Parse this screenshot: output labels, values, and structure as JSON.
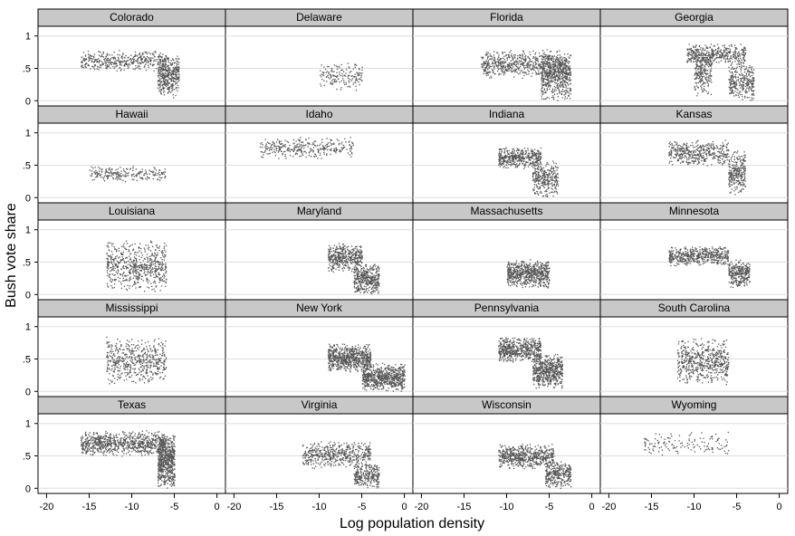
{
  "chart_data": {
    "type": "scatter",
    "layout": "small-multiples",
    "xlabel": "Log population density",
    "ylabel": "Bush vote share",
    "xlim": [
      -21,
      1
    ],
    "ylim": [
      -0.08,
      1.15
    ],
    "x_ticks": [
      -20,
      -15,
      -10,
      -5,
      0
    ],
    "x_tick_labels": [
      "-20",
      "-15",
      "-10",
      "-5",
      "0"
    ],
    "y_ticks": [
      0,
      0.5,
      1
    ],
    "y_tick_labels": [
      "0",
      ".5",
      "1"
    ],
    "grid": "horizontal",
    "point_color": "#555555",
    "panel_header_color": "#c8c8c8",
    "panels": [
      {
        "title": "Colorado",
        "clusters": [
          {
            "x": [
              -16,
              -6
            ],
            "y": [
              0.45,
              0.8
            ],
            "n": 420
          },
          {
            "x": [
              -7,
              -4.5
            ],
            "y": [
              0.05,
              0.75
            ],
            "n": 380
          }
        ]
      },
      {
        "title": "Delaware",
        "clusters": [
          {
            "x": [
              -10,
              -5
            ],
            "y": [
              0.15,
              0.6
            ],
            "n": 160
          }
        ]
      },
      {
        "title": "Florida",
        "clusters": [
          {
            "x": [
              -13,
              -3
            ],
            "y": [
              0.35,
              0.8
            ],
            "n": 650
          },
          {
            "x": [
              -6,
              -2.5
            ],
            "y": [
              0.0,
              0.75
            ],
            "n": 500
          }
        ]
      },
      {
        "title": "Georgia",
        "clusters": [
          {
            "x": [
              -11,
              -4
            ],
            "y": [
              0.55,
              0.9
            ],
            "n": 420
          },
          {
            "x": [
              -10,
              -8
            ],
            "y": [
              0.05,
              0.8
            ],
            "n": 220
          },
          {
            "x": [
              -6,
              -3
            ],
            "y": [
              0.0,
              0.6
            ],
            "n": 300
          }
        ]
      },
      {
        "title": "Hawaii",
        "clusters": [
          {
            "x": [
              -15,
              -6
            ],
            "y": [
              0.25,
              0.5
            ],
            "n": 220
          }
        ]
      },
      {
        "title": "Idaho",
        "clusters": [
          {
            "x": [
              -17,
              -6
            ],
            "y": [
              0.6,
              0.95
            ],
            "n": 320
          }
        ]
      },
      {
        "title": "Indiana",
        "clusters": [
          {
            "x": [
              -11,
              -6
            ],
            "y": [
              0.45,
              0.8
            ],
            "n": 420
          },
          {
            "x": [
              -7,
              -4
            ],
            "y": [
              0.0,
              0.6
            ],
            "n": 300
          }
        ]
      },
      {
        "title": "Kansas",
        "clusters": [
          {
            "x": [
              -13,
              -6
            ],
            "y": [
              0.5,
              0.9
            ],
            "n": 420
          },
          {
            "x": [
              -6,
              -4
            ],
            "y": [
              0.0,
              0.75
            ],
            "n": 260
          }
        ]
      },
      {
        "title": "Louisiana",
        "clusters": [
          {
            "x": [
              -13,
              -6
            ],
            "y": [
              0.05,
              0.85
            ],
            "n": 620
          }
        ]
      },
      {
        "title": "Maryland",
        "clusters": [
          {
            "x": [
              -9,
              -5
            ],
            "y": [
              0.35,
              0.8
            ],
            "n": 420
          },
          {
            "x": [
              -6,
              -3
            ],
            "y": [
              0.0,
              0.5
            ],
            "n": 380
          }
        ]
      },
      {
        "title": "Massachusetts",
        "clusters": [
          {
            "x": [
              -10,
              -5
            ],
            "y": [
              0.1,
              0.55
            ],
            "n": 650
          }
        ]
      },
      {
        "title": "Minnesota",
        "clusters": [
          {
            "x": [
              -13,
              -6
            ],
            "y": [
              0.45,
              0.75
            ],
            "n": 500
          },
          {
            "x": [
              -6,
              -3.5
            ],
            "y": [
              0.1,
              0.55
            ],
            "n": 280
          }
        ]
      },
      {
        "title": "Mississippi",
        "clusters": [
          {
            "x": [
              -13,
              -6
            ],
            "y": [
              0.1,
              0.85
            ],
            "n": 520
          }
        ]
      },
      {
        "title": "New York",
        "clusters": [
          {
            "x": [
              -9,
              -4
            ],
            "y": [
              0.3,
              0.75
            ],
            "n": 700
          },
          {
            "x": [
              -5,
              0
            ],
            "y": [
              0.0,
              0.45
            ],
            "n": 650
          }
        ]
      },
      {
        "title": "Pennsylvania",
        "clusters": [
          {
            "x": [
              -11,
              -6
            ],
            "y": [
              0.45,
              0.85
            ],
            "n": 550
          },
          {
            "x": [
              -7,
              -3.5
            ],
            "y": [
              0.05,
              0.6
            ],
            "n": 550
          }
        ]
      },
      {
        "title": "South Carolina",
        "clusters": [
          {
            "x": [
              -12,
              -6
            ],
            "y": [
              0.1,
              0.85
            ],
            "n": 560
          }
        ]
      },
      {
        "title": "Texas",
        "clusters": [
          {
            "x": [
              -16,
              -6
            ],
            "y": [
              0.5,
              0.9
            ],
            "n": 800
          },
          {
            "x": [
              -7,
              -5
            ],
            "y": [
              0.0,
              0.85
            ],
            "n": 600
          }
        ]
      },
      {
        "title": "Virginia",
        "clusters": [
          {
            "x": [
              -12,
              -4
            ],
            "y": [
              0.3,
              0.75
            ],
            "n": 480
          },
          {
            "x": [
              -6,
              -3
            ],
            "y": [
              0.0,
              0.4
            ],
            "n": 260
          }
        ]
      },
      {
        "title": "Wisconsin",
        "clusters": [
          {
            "x": [
              -11,
              -4.5
            ],
            "y": [
              0.3,
              0.7
            ],
            "n": 560
          },
          {
            "x": [
              -5.5,
              -2.5
            ],
            "y": [
              0.0,
              0.45
            ],
            "n": 300
          }
        ]
      },
      {
        "title": "Wyoming",
        "clusters": [
          {
            "x": [
              -16,
              -6
            ],
            "y": [
              0.5,
              0.9
            ],
            "n": 140
          }
        ]
      }
    ]
  }
}
